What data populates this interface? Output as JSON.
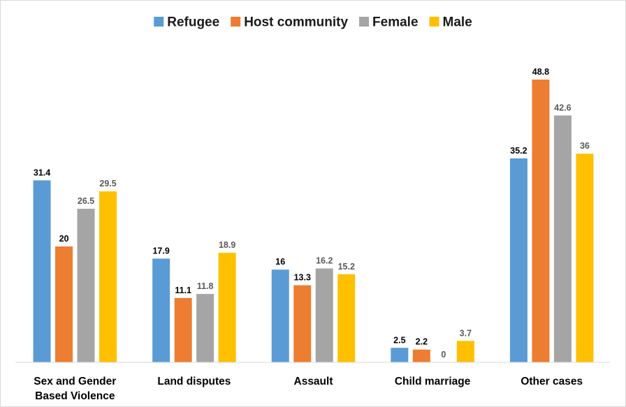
{
  "chart_data": {
    "type": "bar",
    "categories": [
      [
        "Sex and Gender",
        "Based Violence"
      ],
      [
        "Land disputes"
      ],
      [
        "Assault"
      ],
      [
        "Child marriage"
      ],
      [
        "Other cases"
      ]
    ],
    "series": [
      {
        "name": "Refugee",
        "color": "#5b9bd5",
        "label_color": "#000000",
        "values": [
          31.4,
          17.9,
          16,
          2.5,
          35.2
        ]
      },
      {
        "name": "Host community",
        "color": "#ed7d31",
        "label_color": "#000000",
        "values": [
          20,
          11.1,
          13.3,
          2.2,
          48.8
        ]
      },
      {
        "name": "Female",
        "color": "#a5a5a5",
        "label_color": "#595959",
        "values": [
          26.5,
          11.8,
          16.2,
          0,
          42.6
        ]
      },
      {
        "name": "Male",
        "color": "#ffc000",
        "label_color": "#595959",
        "values": [
          29.5,
          18.9,
          15.2,
          3.7,
          36
        ]
      }
    ],
    "ylim": [
      0,
      50
    ],
    "grid": false,
    "legend_position": "top-center"
  }
}
